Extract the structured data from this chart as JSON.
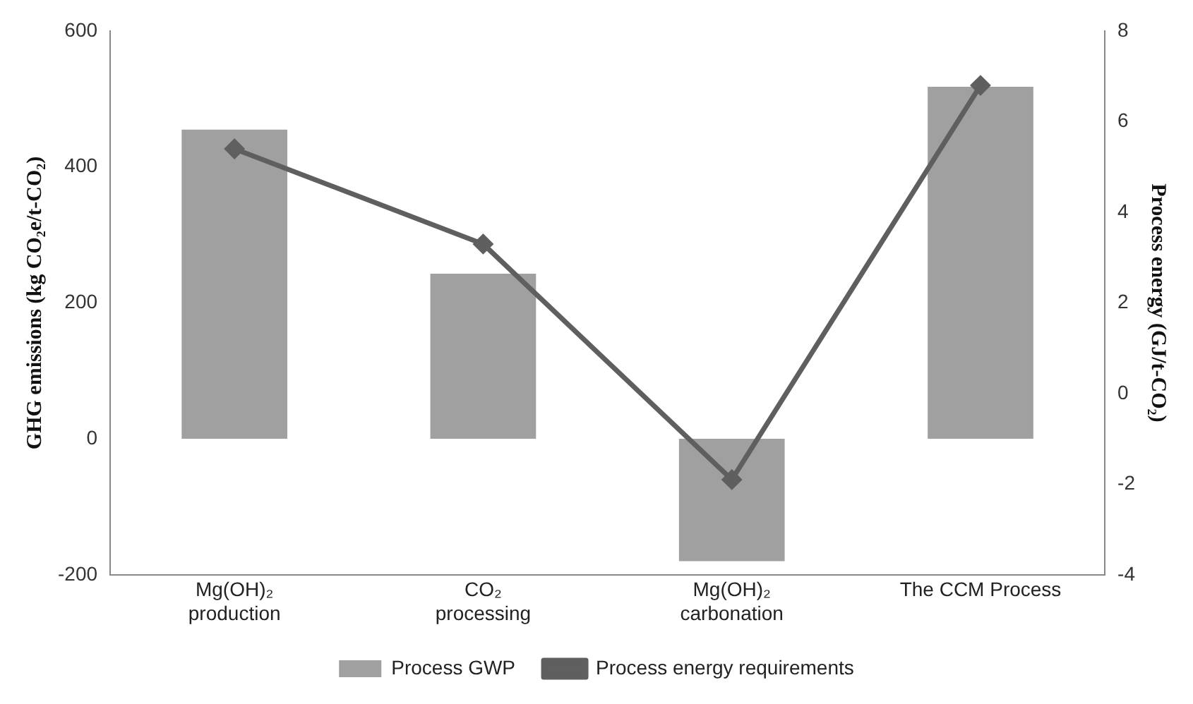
{
  "chart_data": {
    "type": "bar",
    "categories": [
      "Mg(OH)₂\nproduction",
      "CO₂\nprocessing",
      "Mg(OH)₂\ncarbonation",
      "The CCM Process"
    ],
    "series": [
      {
        "name": "Process GWP",
        "color": "#a0a0a0",
        "values": [
          455,
          243,
          -180,
          518
        ]
      },
      {
        "name": "Process energy requirements",
        "type": "line",
        "axis": "y2",
        "color": "#5f5f5f",
        "marker": "diamond",
        "values": [
          5.4,
          3.3,
          -1.9,
          6.8
        ]
      }
    ],
    "ylabel": "GHG emissions (kg CO₂e/t-CO₂)",
    "y2label": "Process energy (GJ/t-CO₂)",
    "ylim": [
      -200,
      600
    ],
    "yticks": [
      -200,
      0,
      200,
      400,
      600
    ],
    "y2lim": [
      -4,
      8
    ],
    "y2ticks": [
      -4,
      -2,
      0,
      2,
      4,
      6,
      8
    ],
    "grid": false,
    "legend": "bottom"
  }
}
